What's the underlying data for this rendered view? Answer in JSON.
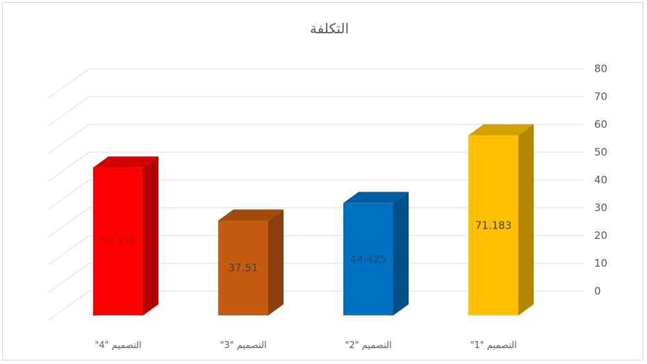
{
  "chart_data": {
    "type": "bar",
    "title": "التكلفة",
    "categories": [
      "التصميم \"4\"",
      "التصميم \"3\"",
      "التصميم \"2\"",
      "التصميم \"1\""
    ],
    "values": [
      58.456,
      37.51,
      44.425,
      71.183
    ],
    "data_labels": [
      "58.456",
      "37.51",
      "44.425",
      "71.183"
    ],
    "bar_colors": [
      "#ff0000",
      "#c55a11",
      "#0070c0",
      "#ffc000"
    ],
    "bar_side_colors": [
      "#b30000",
      "#8a3f0c",
      "#004f87",
      "#b38600"
    ],
    "bar_top_colors": [
      "#d40000",
      "#a34a0e",
      "#005da0",
      "#d4a000"
    ],
    "label_colors": [
      "#c00000",
      "#404040",
      "#1f4e79",
      "#404040"
    ],
    "yticks": [
      0,
      10,
      20,
      30,
      40,
      50,
      60,
      70,
      80
    ],
    "ylim": [
      0,
      80
    ],
    "y_axis_position": "right",
    "grid": true,
    "style": "3d-column",
    "xlabel": "",
    "ylabel": ""
  }
}
